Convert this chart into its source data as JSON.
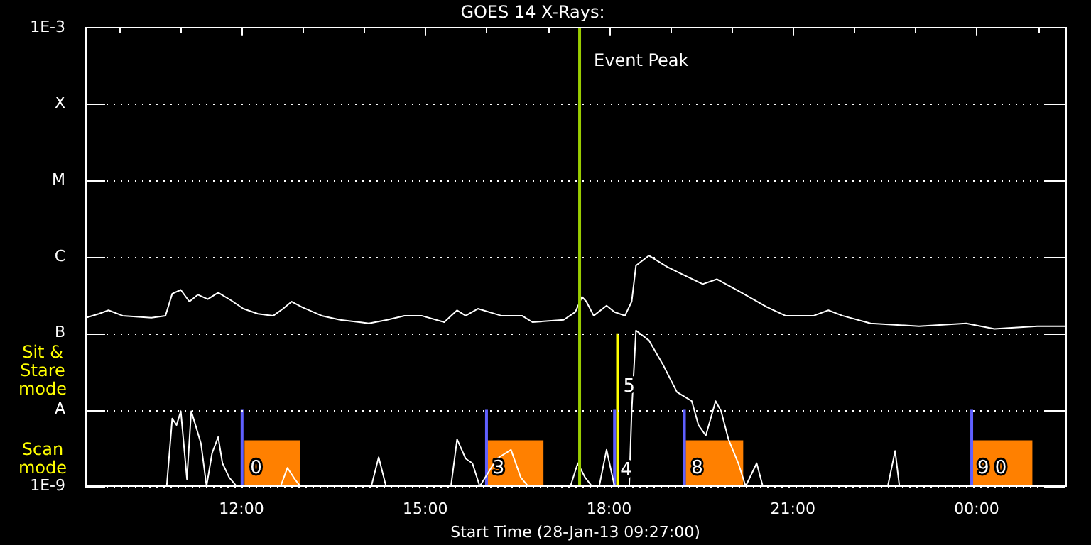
{
  "chart_data": {
    "type": "line",
    "title": "GOES 14 X-Rays:",
    "xlabel": "Start Time (28-Jan-13 09:27:00)",
    "xlim": [
      9.45,
      25.45
    ],
    "xticks": [
      {
        "value": 10,
        "label": null
      },
      {
        "value": 11,
        "label": null
      },
      {
        "value": 12,
        "label": "12:00"
      },
      {
        "value": 13,
        "label": null
      },
      {
        "value": 14,
        "label": null
      },
      {
        "value": 15,
        "label": "15:00"
      },
      {
        "value": 16,
        "label": null
      },
      {
        "value": 17,
        "label": null
      },
      {
        "value": 18,
        "label": "18:00"
      },
      {
        "value": 19,
        "label": null
      },
      {
        "value": 20,
        "label": null
      },
      {
        "value": 21,
        "label": "21:00"
      },
      {
        "value": 22,
        "label": null
      },
      {
        "value": 23,
        "label": null
      },
      {
        "value": 24,
        "label": "00:00"
      },
      {
        "value": 25,
        "label": null
      }
    ],
    "ylim": [
      1e-09,
      0.001
    ],
    "log": true,
    "yticks": [
      {
        "value": 1e-09,
        "label": "1E-9"
      },
      {
        "value": 1e-08,
        "label": "A"
      },
      {
        "value": 1e-07,
        "label": "B"
      },
      {
        "value": 1e-06,
        "label": "C"
      },
      {
        "value": 1e-05,
        "label": "M"
      },
      {
        "value": 0.0001,
        "label": "X"
      },
      {
        "value": 0.001,
        "label": "1E-3"
      }
    ],
    "grid": "y",
    "series": [
      {
        "color": "#ffffff",
        "x": [
          9.46,
          9.67,
          9.83,
          10.06,
          10.53,
          10.76,
          10.87,
          11.01,
          11.15,
          11.29,
          11.45,
          11.62,
          11.83,
          12.03,
          12.27,
          12.52,
          12.68,
          12.82,
          12.99,
          13.31,
          13.61,
          14.08,
          14.38,
          14.66,
          14.94,
          15.31,
          15.52,
          15.66,
          15.86,
          16.24,
          16.58,
          16.75,
          17.26,
          17.45,
          17.56,
          17.63,
          17.75,
          17.96,
          18.09,
          18.26,
          18.37,
          18.44,
          18.65,
          18.95,
          19.18,
          19.53,
          19.76,
          20.11,
          20.58,
          20.88,
          21.34,
          21.58,
          21.81,
          22.27,
          23.06,
          23.83,
          24.29,
          24.99,
          25.45
        ],
        "values": [
          1.6e-07,
          1.8e-07,
          2e-07,
          1.7e-07,
          1.6e-07,
          1.7e-07,
          3.3e-07,
          3.7e-07,
          2.6e-07,
          3.2e-07,
          2.8e-07,
          3.4e-07,
          2.7e-07,
          2.1e-07,
          1.8e-07,
          1.7e-07,
          2.1e-07,
          2.6e-07,
          2.2e-07,
          1.7e-07,
          1.5e-07,
          1.35e-07,
          1.5e-07,
          1.7e-07,
          1.7e-07,
          1.4e-07,
          2e-07,
          1.7e-07,
          2.1e-07,
          1.7e-07,
          1.7e-07,
          1.4e-07,
          1.5e-07,
          1.9e-07,
          3e-07,
          2.6e-07,
          1.7e-07,
          2.3e-07,
          1.9e-07,
          1.7e-07,
          2.6e-07,
          7.7e-07,
          1.04e-06,
          7.4e-07,
          6e-07,
          4.4e-07,
          5.1e-07,
          3.6e-07,
          2.2e-07,
          1.7e-07,
          1.7e-07,
          2e-07,
          1.7e-07,
          1.35e-07,
          1.24e-07,
          1.35e-07,
          1.14e-07,
          1.24e-07,
          1.24e-07
        ]
      },
      {
        "color": "#ffffff",
        "x": [
          9.45,
          10.78,
          10.87,
          10.94,
          11.01,
          11.11,
          11.18,
          11.25,
          11.34,
          11.43,
          11.52,
          11.62,
          11.69,
          11.8,
          11.92,
          12.64,
          12.75,
          12.87,
          12.96,
          14.12,
          14.24,
          14.36,
          15.42,
          15.52,
          15.66,
          15.77,
          15.89,
          16.17,
          16.4,
          16.56,
          16.68,
          17.37,
          17.49,
          17.61,
          17.72,
          17.84,
          17.96,
          18.09,
          18.33,
          18.37,
          18.44,
          18.65,
          18.88,
          19.11,
          19.35,
          19.46,
          19.58,
          19.74,
          19.83,
          19.95,
          20.11,
          20.23,
          20.41,
          20.51,
          22.55,
          22.67,
          22.74,
          25.45
        ],
        "values": [
          1e-09,
          1e-09,
          7.7e-09,
          6.3e-09,
          9.6e-09,
          1.24e-09,
          9.6e-09,
          6.3e-09,
          3.6e-09,
          1e-09,
          2.7e-09,
          4.4e-09,
          2e-09,
          1.3e-09,
          1e-09,
          1e-09,
          1.74e-09,
          1.24e-09,
          1e-09,
          1e-09,
          2.4e-09,
          1e-09,
          1e-09,
          4.1e-09,
          2.3e-09,
          2e-09,
          1e-09,
          2.3e-09,
          3e-09,
          1.3e-09,
          1e-09,
          1e-09,
          2e-09,
          1.3e-09,
          1e-09,
          1e-09,
          3e-09,
          1e-09,
          1e-09,
          9.6e-09,
          1.09e-07,
          8.1e-08,
          3.9e-08,
          1.7e-08,
          1.3e-08,
          6.3e-09,
          4.6e-09,
          1.3e-08,
          9.6e-09,
          4.1e-09,
          2e-09,
          1e-09,
          2e-09,
          1e-09,
          1e-09,
          2.9e-09,
          1e-09,
          1e-09
        ]
      }
    ],
    "bands": [
      {
        "axis": "x",
        "from": 12.05,
        "to": 12.96,
        "color": "#ff8000"
      },
      {
        "axis": "x",
        "from": 16.01,
        "to": 16.93,
        "color": "#ff8000"
      },
      {
        "axis": "x",
        "from": 19.25,
        "to": 20.19,
        "color": "#ff8000"
      },
      {
        "axis": "x",
        "from": 23.92,
        "to": 24.91,
        "color": "#ff8000"
      }
    ],
    "ref_lines": [
      {
        "axis": "x",
        "value": 18.14,
        "color": "#ffff00"
      },
      {
        "axis": "x",
        "value": 12.01,
        "color": "#6060ff"
      },
      {
        "axis": "x",
        "value": 16.0,
        "color": "#6060ff"
      },
      {
        "axis": "x",
        "value": 18.09,
        "color": "#6060ff"
      },
      {
        "axis": "x",
        "value": 19.23,
        "color": "#6060ff"
      },
      {
        "axis": "x",
        "value": 23.92,
        "color": "#6060ff"
      },
      {
        "axis": "x",
        "value": 17.52,
        "label": "Event Peak",
        "color": "#99cc00"
      }
    ],
    "annotations": [
      "Sit & Stare mode",
      "Scan mode",
      {
        "text": "0",
        "x": 12.05,
        "y": 1.7e-09
      },
      {
        "text": "3",
        "x": 16.01,
        "y": 1.7e-09
      },
      {
        "text": "4",
        "x": 18.09,
        "y": 1.6e-09
      },
      {
        "text": "5",
        "x": 18.14,
        "y": 2e-08
      },
      {
        "text": "8",
        "x": 19.25,
        "y": 1.7e-09
      },
      {
        "text": "9 0",
        "x": 23.92,
        "y": 1.7e-09
      }
    ]
  }
}
